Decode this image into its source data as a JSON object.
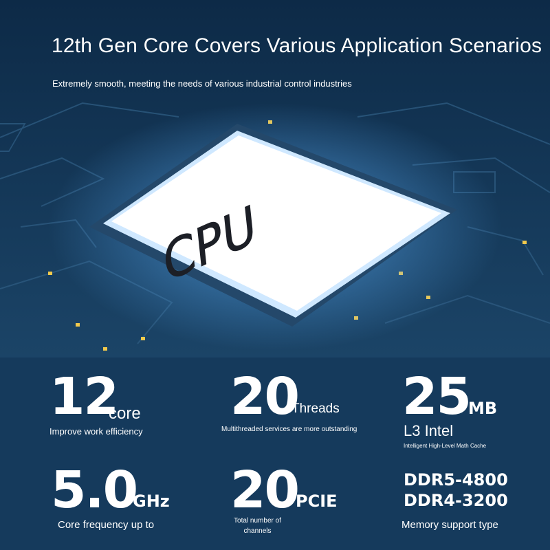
{
  "header": {
    "title": "12th Gen Core Covers Various Application Scenarios",
    "subtitle": "Extremely smooth, meeting the needs of various industrial control industries"
  },
  "chip_label": "CPU",
  "specs": [
    {
      "value": "12",
      "unit": "core",
      "caption": "Improve work efficiency"
    },
    {
      "value": "20",
      "unit": "Threads",
      "caption": "Multithreaded services are more outstanding"
    },
    {
      "value": "25",
      "unit": "MB",
      "caption": "L3 Intel",
      "note": "Intelligent High-Level Math Cache"
    },
    {
      "value": "5.0",
      "unit": "GHz",
      "caption": "Core frequency up to"
    },
    {
      "value": "20",
      "unit": "PCIE",
      "caption": "Total number of channels"
    },
    {
      "lines": [
        "DDR5-4800",
        "DDR4-3200"
      ],
      "caption": "Memory support type"
    }
  ]
}
